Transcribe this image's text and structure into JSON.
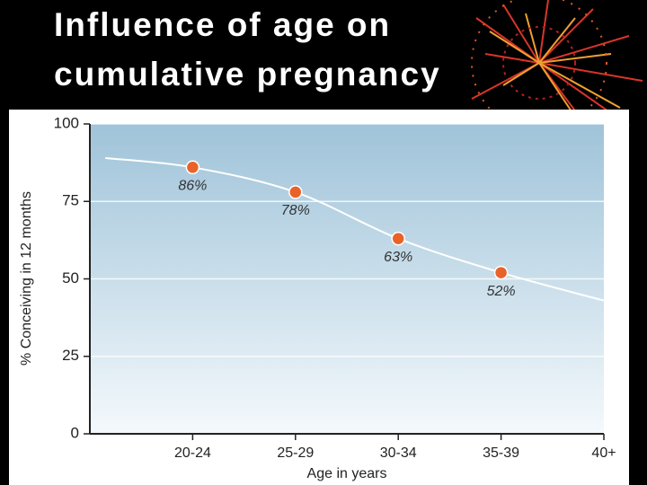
{
  "chart_data": {
    "type": "line",
    "title": "Influence of age on cumulative pregnancy",
    "xlabel": "Age in years",
    "ylabel": "% Conceiving in 12 months",
    "categories": [
      "20-24",
      "25-29",
      "30-34",
      "35-39",
      "40+"
    ],
    "x": [
      -0.85,
      0,
      1,
      2,
      3,
      4
    ],
    "values": [
      89,
      86,
      78,
      63,
      52,
      43
    ],
    "value_labels": [
      null,
      "86%",
      "78%",
      "63%",
      "52%",
      null
    ],
    "xlim": [
      -1,
      4
    ],
    "ylim": [
      0,
      100
    ],
    "yticks": [
      0,
      25,
      50,
      75,
      100
    ],
    "grid": true,
    "color": "#ffffff",
    "marker_color": "#e8622a"
  }
}
